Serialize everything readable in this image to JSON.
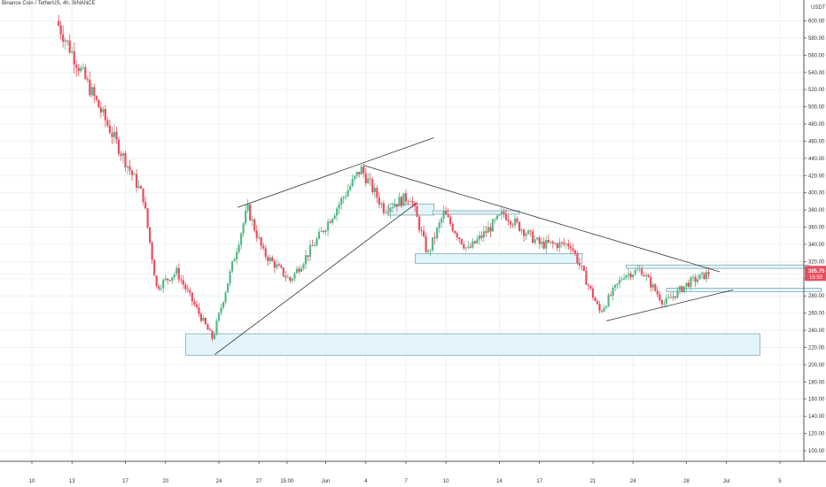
{
  "chart_data": {
    "type": "candlestick",
    "title": "Binance Coin / TetherUS, 4h, BINANCE",
    "quote_unit": "USDT",
    "last_price": "305.75",
    "countdown": "15:50",
    "ylim": [
      88,
      610
    ],
    "y_ticks": [
      "600.00",
      "580.00",
      "560.00",
      "540.00",
      "520.00",
      "500.00",
      "480.00",
      "460.00",
      "440.00",
      "420.00",
      "400.00",
      "380.00",
      "360.00",
      "340.00",
      "320.00",
      "300.00",
      "280.00",
      "260.00",
      "240.00",
      "220.00",
      "200.00",
      "180.00",
      "160.00",
      "140.00",
      "120.00",
      "100.00"
    ],
    "x_ticks": [
      {
        "label": "10",
        "day": 10
      },
      {
        "label": "13",
        "day": 13
      },
      {
        "label": "17",
        "day": 17
      },
      {
        "label": "20",
        "day": 20
      },
      {
        "label": "24",
        "day": 24
      },
      {
        "label": "27",
        "day": 27
      },
      {
        "label": "15:00",
        "day": 29.1
      },
      {
        "label": "Jun",
        "day": 32
      },
      {
        "label": "4",
        "day": 35
      },
      {
        "label": "7",
        "day": 38
      },
      {
        "label": "10",
        "day": 41
      },
      {
        "label": "14",
        "day": 45
      },
      {
        "label": "17",
        "day": 48
      },
      {
        "label": "21",
        "day": 52
      },
      {
        "label": "24",
        "day": 55
      },
      {
        "label": "28",
        "day": 59
      },
      {
        "label": "Jul",
        "day": 62
      },
      {
        "label": "5",
        "day": 66
      }
    ],
    "key_prices": [
      {
        "day": 12,
        "price": 600
      },
      {
        "day": 18.5,
        "price": 395
      },
      {
        "day": 19.5,
        "price": 290
      },
      {
        "day": 21,
        "price": 308
      },
      {
        "day": 23.7,
        "price": 230
      },
      {
        "day": 26.3,
        "price": 382
      },
      {
        "day": 27.5,
        "price": 330
      },
      {
        "day": 29.5,
        "price": 298
      },
      {
        "day": 31.5,
        "price": 345
      },
      {
        "day": 34.8,
        "price": 428
      },
      {
        "day": 36.5,
        "price": 382
      },
      {
        "day": 38.5,
        "price": 396
      },
      {
        "day": 39.8,
        "price": 328
      },
      {
        "day": 41,
        "price": 376
      },
      {
        "day": 42.8,
        "price": 333
      },
      {
        "day": 45.5,
        "price": 376
      },
      {
        "day": 48.2,
        "price": 340
      },
      {
        "day": 50.5,
        "price": 340
      },
      {
        "day": 52.7,
        "price": 261
      },
      {
        "day": 54.5,
        "price": 305
      },
      {
        "day": 55.8,
        "price": 310
      },
      {
        "day": 57.5,
        "price": 271
      },
      {
        "day": 59.3,
        "price": 295
      },
      {
        "day": 60.8,
        "price": 306
      }
    ],
    "trendlines": [
      {
        "from": {
          "day": 23.7,
          "price": 212
        },
        "to": {
          "day": 38.8,
          "price": 388
        }
      },
      {
        "from": {
          "day": 25.4,
          "price": 383
        },
        "to": {
          "day": 40.1,
          "price": 464
        }
      },
      {
        "from": {
          "day": 34.8,
          "price": 432
        },
        "to": {
          "day": 61.5,
          "price": 308
        }
      },
      {
        "from": {
          "day": 53.0,
          "price": 251
        },
        "to": {
          "day": 62.5,
          "price": 287
        }
      }
    ],
    "zones": [
      {
        "from_day": 21.5,
        "to_day": 64.5,
        "low": 211,
        "high": 236
      },
      {
        "from_day": 36.7,
        "to_day": 40.1,
        "low": 374,
        "high": 387
      },
      {
        "from_day": 38.7,
        "to_day": 51.2,
        "low": 318,
        "high": 329
      },
      {
        "from_day": 40.0,
        "to_day": 46.5,
        "low": 375,
        "high": 379
      },
      {
        "from_day": 54.5,
        "to_day": 68.2,
        "low": 312,
        "high": 316
      },
      {
        "from_day": 57.5,
        "to_day": 69.1,
        "low": 285,
        "high": 289
      }
    ],
    "colors": {
      "up": "#53b987",
      "down": "#eb4d5c",
      "zone_fill": "#e3f5fa",
      "zone_border": "#7ea9b5",
      "line": "#333333",
      "price_tag": "#eb4d5c"
    }
  }
}
